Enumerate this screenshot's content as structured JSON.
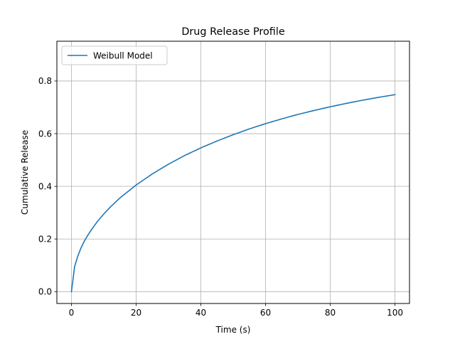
{
  "chart_data": {
    "type": "line",
    "title": "Drug Release Profile",
    "xlabel": "Time (s)",
    "ylabel": "Cumulative Release",
    "xlim": [
      -4.5,
      104.5
    ],
    "ylim": [
      -0.045,
      0.951
    ],
    "x_ticks": [
      0,
      20,
      40,
      60,
      80,
      100
    ],
    "x_tick_labels": [
      "0",
      "20",
      "40",
      "60",
      "80",
      "100"
    ],
    "y_ticks": [
      0.0,
      0.2,
      0.4,
      0.6,
      0.8
    ],
    "y_tick_labels": [
      "0.0",
      "0.2",
      "0.4",
      "0.6",
      "0.8"
    ],
    "grid": true,
    "legend": {
      "placement": "top-left"
    },
    "series": [
      {
        "name": "Weibull Model",
        "color": "#1f77b4",
        "x": [
          0,
          1,
          2,
          3,
          4,
          5,
          6,
          8,
          10,
          12,
          15,
          20,
          25,
          30,
          35,
          40,
          45,
          50,
          55,
          60,
          65,
          70,
          75,
          80,
          85,
          90,
          95,
          100
        ],
        "y": [
          0.0,
          0.096,
          0.136,
          0.167,
          0.192,
          0.213,
          0.232,
          0.266,
          0.295,
          0.321,
          0.356,
          0.405,
          0.447,
          0.484,
          0.517,
          0.546,
          0.572,
          0.596,
          0.618,
          0.638,
          0.656,
          0.673,
          0.688,
          0.702,
          0.715,
          0.727,
          0.738,
          0.748
        ]
      }
    ]
  }
}
